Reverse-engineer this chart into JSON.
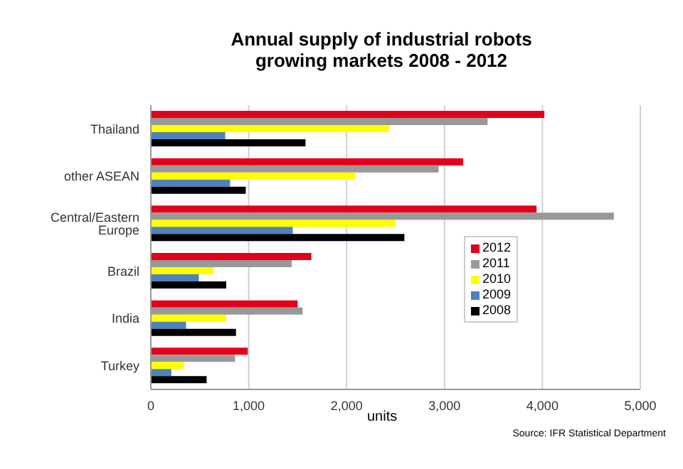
{
  "chart_data": {
    "type": "bar",
    "orientation": "horizontal",
    "title": "Annual supply of industrial robots\ngrowing markets 2008 - 2012",
    "xlabel": "units",
    "annotations": [
      "Source: IFR Statistical Department"
    ],
    "categories": [
      "Thailand",
      "other ASEAN",
      "Central/Eastern Europe",
      "Brazil",
      "India",
      "Turkey"
    ],
    "series": [
      {
        "name": "2012",
        "color": "#e2001a",
        "values": [
          4020,
          3190,
          3940,
          1640,
          1500,
          990
        ]
      },
      {
        "name": "2011",
        "color": "#999999",
        "values": [
          3440,
          2940,
          4730,
          1440,
          1550,
          860
        ]
      },
      {
        "name": "2010",
        "color": "#ffff00",
        "values": [
          2440,
          2090,
          2500,
          640,
          770,
          340
        ]
      },
      {
        "name": "2009",
        "color": "#4f81bd",
        "values": [
          760,
          810,
          1450,
          490,
          360,
          210
        ]
      },
      {
        "name": "2008",
        "color": "#000000",
        "values": [
          1580,
          970,
          2590,
          770,
          870,
          570
        ]
      }
    ],
    "xlim": [
      0,
      5000
    ],
    "xticks": [
      {
        "value": 0,
        "label": "0"
      },
      {
        "value": 1000,
        "label": "1,000"
      },
      {
        "value": 2000,
        "label": "2,000"
      },
      {
        "value": 3000,
        "label": "3,000"
      },
      {
        "value": 4000,
        "label": "4,000"
      },
      {
        "value": 5000,
        "label": "5,000"
      }
    ],
    "grid": "x",
    "legend": "right"
  }
}
